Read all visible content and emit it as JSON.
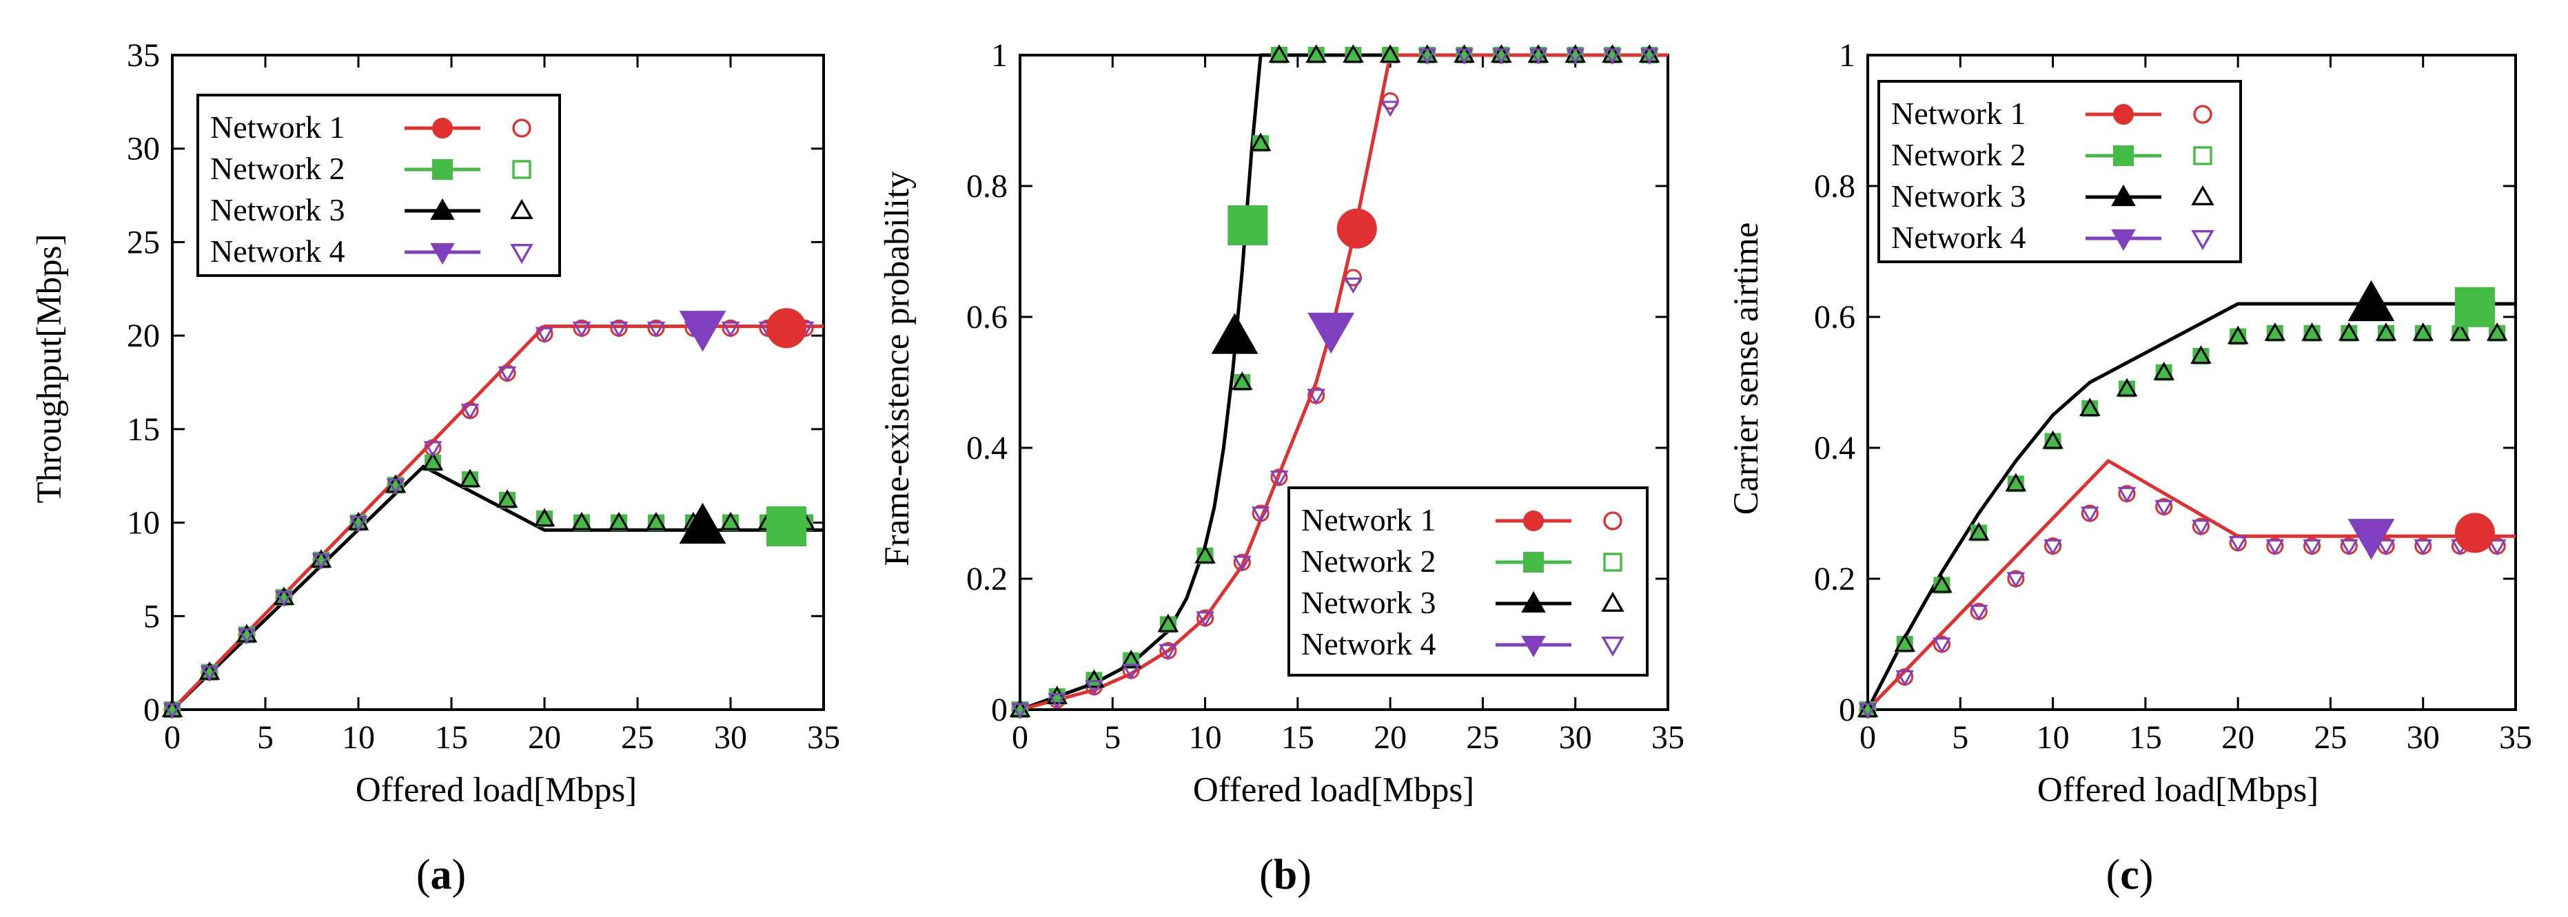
{
  "colors": {
    "network1": "#e03030",
    "network2": "#44bb44",
    "network3": "#000000",
    "network4": "#8040c0"
  },
  "legend_labels": [
    "Network 1",
    "Network 2",
    "Network 3",
    "Network 4"
  ],
  "chart_data": [
    {
      "id": "a",
      "type": "line",
      "caption": "a",
      "xlabel": "Offered load[Mbps]",
      "ylabel": "Throughput[Mbps]",
      "xlim": [
        0,
        35
      ],
      "ylim": [
        0,
        35
      ],
      "xticks": [
        0,
        5,
        10,
        15,
        20,
        25,
        30,
        35
      ],
      "yticks": [
        0,
        5,
        10,
        15,
        20,
        25,
        30,
        35
      ],
      "ytick_labels": [
        "0",
        "5",
        "10",
        "15",
        "20",
        "25",
        "30",
        "35"
      ],
      "legend_position": "top-left",
      "analytic_lines": [
        {
          "network": "network3",
          "points": [
            [
              0,
              0
            ],
            [
              13.5,
              13.0
            ],
            [
              20,
              9.6
            ],
            [
              35,
              9.6
            ]
          ]
        },
        {
          "network": "network1",
          "points": [
            [
              0,
              0
            ],
            [
              20,
              20.5
            ],
            [
              35,
              20.5
            ]
          ]
        }
      ],
      "sim_x": [
        0,
        2,
        4,
        6,
        8,
        10,
        12,
        14,
        16,
        18,
        20,
        22,
        24,
        26,
        28,
        30,
        32,
        34
      ],
      "series": [
        {
          "name": "Network 1",
          "network": "network1",
          "marker": "circle",
          "values": [
            0,
            2,
            4,
            6,
            8,
            10,
            12,
            14,
            16,
            18,
            20.1,
            20.4,
            20.4,
            20.4,
            20.4,
            20.4,
            20.4,
            20.4
          ]
        },
        {
          "name": "Network 2",
          "network": "network2",
          "marker": "square",
          "values": [
            0,
            2,
            4,
            6,
            8,
            10,
            12,
            13.2,
            12.3,
            11.2,
            10.2,
            10,
            10,
            10,
            10,
            10,
            10,
            10
          ]
        },
        {
          "name": "Network 3",
          "network": "network3",
          "marker": "triangle",
          "values": [
            0,
            2,
            4,
            6,
            8,
            10,
            12,
            13.2,
            12.3,
            11.2,
            10.2,
            10,
            10,
            10,
            10,
            10,
            10,
            10
          ]
        },
        {
          "name": "Network 4",
          "network": "network4",
          "marker": "invtriangle",
          "values": [
            0,
            2,
            4,
            6,
            8,
            10,
            12,
            14,
            16,
            18,
            20.1,
            20.4,
            20.4,
            20.4,
            20.4,
            20.4,
            20.4,
            20.4
          ]
        }
      ],
      "big_markers": [
        {
          "network": "network1",
          "marker": "circle",
          "x": 33,
          "y": 20.4
        },
        {
          "network": "network2",
          "marker": "square",
          "x": 33,
          "y": 9.8
        },
        {
          "network": "network3",
          "marker": "triangle",
          "x": 28.5,
          "y": 9.8
        },
        {
          "network": "network4",
          "marker": "invtriangle",
          "x": 28.5,
          "y": 20.4
        }
      ]
    },
    {
      "id": "b",
      "type": "line",
      "caption": "b",
      "xlabel": "Offered load[Mbps]",
      "ylabel": "Frame-existence probability",
      "xlim": [
        0,
        35
      ],
      "ylim": [
        0,
        1
      ],
      "xticks": [
        0,
        5,
        10,
        15,
        20,
        25,
        30,
        35
      ],
      "yticks": [
        0,
        0.2,
        0.4,
        0.6,
        0.8,
        1
      ],
      "ytick_labels": [
        "0",
        "0.2",
        "0.4",
        "0.6",
        "0.8",
        "1"
      ],
      "legend_position": "bottom-right",
      "analytic_lines": [
        {
          "network": "network3",
          "points": [
            [
              0,
              0
            ],
            [
              2,
              0.02
            ],
            [
              4,
              0.04
            ],
            [
              6,
              0.07
            ],
            [
              8,
              0.12
            ],
            [
              9,
              0.17
            ],
            [
              10,
              0.25
            ],
            [
              10.5,
              0.31
            ],
            [
              11,
              0.4
            ],
            [
              11.5,
              0.52
            ],
            [
              12,
              0.67
            ],
            [
              12.5,
              0.85
            ],
            [
              13,
              1
            ],
            [
              35,
              1
            ]
          ]
        },
        {
          "network": "network1",
          "points": [
            [
              0,
              0
            ],
            [
              2,
              0.015
            ],
            [
              4,
              0.03
            ],
            [
              6,
              0.055
            ],
            [
              8,
              0.09
            ],
            [
              10,
              0.14
            ],
            [
              12,
              0.22
            ],
            [
              13,
              0.29
            ],
            [
              14,
              0.36
            ],
            [
              15,
              0.43
            ],
            [
              16,
              0.5
            ],
            [
              17,
              0.6
            ],
            [
              18,
              0.72
            ],
            [
              19,
              0.86
            ],
            [
              20,
              1
            ],
            [
              35,
              1
            ]
          ]
        }
      ],
      "sim_x": [
        0,
        2,
        4,
        6,
        8,
        10,
        12,
        13,
        14,
        16,
        18,
        20,
        22,
        24,
        26,
        28,
        30,
        32,
        34
      ],
      "series": [
        {
          "name": "Network 1",
          "network": "network1",
          "marker": "circle",
          "values": [
            0,
            0.015,
            0.035,
            0.06,
            0.09,
            0.14,
            0.225,
            0.3,
            0.355,
            0.48,
            0.66,
            0.93,
            1,
            1,
            1,
            1,
            1,
            1,
            1
          ]
        },
        {
          "name": "Network 2",
          "network": "network2",
          "marker": "square",
          "values": [
            0,
            0.02,
            0.045,
            0.075,
            0.13,
            0.235,
            0.5,
            0.865,
            1,
            1,
            1,
            1,
            1,
            1,
            1,
            1,
            1,
            1,
            1
          ]
        },
        {
          "name": "Network 3",
          "network": "network3",
          "marker": "triangle",
          "values": [
            0,
            0.02,
            0.045,
            0.075,
            0.13,
            0.235,
            0.5,
            0.865,
            1,
            1,
            1,
            1,
            1,
            1,
            1,
            1,
            1,
            1,
            1
          ]
        },
        {
          "name": "Network 4",
          "network": "network4",
          "marker": "invtriangle",
          "values": [
            0,
            0.015,
            0.035,
            0.06,
            0.09,
            0.14,
            0.225,
            0.3,
            0.355,
            0.48,
            0.65,
            0.92,
            1,
            1,
            1,
            1,
            1,
            1,
            1
          ]
        }
      ],
      "big_markers": [
        {
          "network": "network1",
          "marker": "circle",
          "x": 18.2,
          "y": 0.735
        },
        {
          "network": "network2",
          "marker": "square",
          "x": 12.3,
          "y": 0.74
        },
        {
          "network": "network3",
          "marker": "triangle",
          "x": 11.6,
          "y": 0.57
        },
        {
          "network": "network4",
          "marker": "invtriangle",
          "x": 16.8,
          "y": 0.58
        }
      ]
    },
    {
      "id": "c",
      "type": "line",
      "caption": "c",
      "xlabel": "Offered load[Mbps]",
      "ylabel": "Carrier sense airtime",
      "xlim": [
        0,
        35
      ],
      "ylim": [
        0,
        1
      ],
      "xticks": [
        0,
        5,
        10,
        15,
        20,
        25,
        30,
        35
      ],
      "yticks": [
        0,
        0.2,
        0.4,
        0.6,
        0.8,
        1
      ],
      "ytick_labels": [
        "0",
        "0.2",
        "0.4",
        "0.6",
        "0.8",
        "1"
      ],
      "legend_position": "top-left",
      "analytic_lines": [
        {
          "network": "network3",
          "points": [
            [
              0,
              0
            ],
            [
              2,
              0.11
            ],
            [
              4,
              0.21
            ],
            [
              6,
              0.3
            ],
            [
              8,
              0.38
            ],
            [
              10,
              0.45
            ],
            [
              12,
              0.5
            ],
            [
              14,
              0.53
            ],
            [
              16,
              0.56
            ],
            [
              18,
              0.59
            ],
            [
              20,
              0.62
            ],
            [
              35,
              0.62
            ]
          ]
        },
        {
          "network": "network1",
          "points": [
            [
              0,
              0
            ],
            [
              13,
              0.38
            ],
            [
              20,
              0.265
            ],
            [
              35,
              0.265
            ]
          ]
        }
      ],
      "sim_x": [
        0,
        2,
        4,
        6,
        8,
        10,
        12,
        14,
        16,
        18,
        20,
        22,
        24,
        26,
        28,
        30,
        32,
        34
      ],
      "series": [
        {
          "name": "Network 1",
          "network": "network1",
          "marker": "circle",
          "values": [
            0,
            0.05,
            0.1,
            0.15,
            0.2,
            0.25,
            0.3,
            0.33,
            0.31,
            0.28,
            0.255,
            0.25,
            0.25,
            0.25,
            0.25,
            0.25,
            0.25,
            0.25
          ]
        },
        {
          "name": "Network 2",
          "network": "network2",
          "marker": "square",
          "values": [
            0,
            0.1,
            0.19,
            0.27,
            0.345,
            0.41,
            0.46,
            0.49,
            0.515,
            0.54,
            0.57,
            0.575,
            0.575,
            0.575,
            0.575,
            0.575,
            0.575,
            0.575
          ]
        },
        {
          "name": "Network 3",
          "network": "network3",
          "marker": "triangle",
          "values": [
            0,
            0.1,
            0.19,
            0.27,
            0.345,
            0.41,
            0.46,
            0.49,
            0.515,
            0.54,
            0.57,
            0.575,
            0.575,
            0.575,
            0.575,
            0.575,
            0.575,
            0.575
          ]
        },
        {
          "name": "Network 4",
          "network": "network4",
          "marker": "invtriangle",
          "values": [
            0,
            0.05,
            0.1,
            0.15,
            0.2,
            0.25,
            0.3,
            0.33,
            0.31,
            0.28,
            0.255,
            0.25,
            0.25,
            0.25,
            0.25,
            0.25,
            0.25,
            0.25
          ]
        }
      ],
      "big_markers": [
        {
          "network": "network1",
          "marker": "circle",
          "x": 32.8,
          "y": 0.27
        },
        {
          "network": "network2",
          "marker": "square",
          "x": 32.8,
          "y": 0.615
        },
        {
          "network": "network3",
          "marker": "triangle",
          "x": 27.2,
          "y": 0.62
        },
        {
          "network": "network4",
          "marker": "invtriangle",
          "x": 27.2,
          "y": 0.265
        }
      ]
    }
  ]
}
